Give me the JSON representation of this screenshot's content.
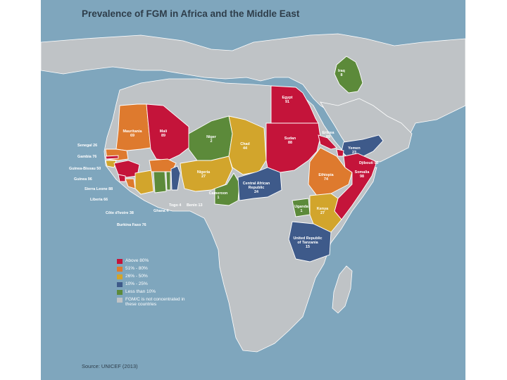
{
  "title": "Prevalence of FGM in Africa and the Middle East",
  "source": "Source: UNICEF (2013)",
  "colors": {
    "above80": "#c4143a",
    "51to80": "#de7a2e",
    "26to50": "#d2a52c",
    "10to25": "#3e5a8a",
    "below10": "#5c8a3a",
    "not_concentrated": "#bfc3c6",
    "water": "#7fa6bd"
  },
  "legend": [
    {
      "label": "Above 80%",
      "color": "#c4143a"
    },
    {
      "label": "51% - 80%",
      "color": "#de7a2e"
    },
    {
      "label": "26% - 50%",
      "color": "#d2a52c"
    },
    {
      "label": "10% - 25%",
      "color": "#3e5a8a"
    },
    {
      "label": "Less than 10%",
      "color": "#5c8a3a"
    },
    {
      "label": "FGM/C is not concentrated in these countries",
      "color": "#bfc3c6"
    }
  ],
  "countries": [
    {
      "id": "iraq",
      "name": "Iraq",
      "value": "8"
    },
    {
      "id": "egypt",
      "name": "Egypt",
      "value": "91"
    },
    {
      "id": "mauritania",
      "name": "Mauritania",
      "value": "69"
    },
    {
      "id": "mali",
      "name": "Mali",
      "value": "89"
    },
    {
      "id": "niger",
      "name": "Niger",
      "value": "2"
    },
    {
      "id": "chad",
      "name": "Chad",
      "value": "44"
    },
    {
      "id": "sudan",
      "name": "Sudan",
      "value": "88"
    },
    {
      "id": "eritrea",
      "name": "Eritrea",
      "value": "89"
    },
    {
      "id": "yemen",
      "name": "Yemen",
      "value": "23"
    },
    {
      "id": "djibouti",
      "name": "Djibouti",
      "value": "93"
    },
    {
      "id": "ethiopia",
      "name": "Ethiopia",
      "value": "74"
    },
    {
      "id": "somalia",
      "name": "Somalia",
      "value": "98"
    },
    {
      "id": "senegal",
      "name": "Senegal",
      "value": "26"
    },
    {
      "id": "gambia",
      "name": "Gambia",
      "value": "76"
    },
    {
      "id": "guinea_bissau",
      "name": "Guinea-Bissau",
      "value": "50"
    },
    {
      "id": "guinea",
      "name": "Guinea",
      "value": "96"
    },
    {
      "id": "sierra_leone",
      "name": "Sierra Leone",
      "value": "88"
    },
    {
      "id": "liberia",
      "name": "Liberia",
      "value": "66"
    },
    {
      "id": "cote_divoire",
      "name": "Côte d'Ivoire",
      "value": "38"
    },
    {
      "id": "burkina_faso",
      "name": "Burkina Faso",
      "value": "76"
    },
    {
      "id": "ghana",
      "name": "Ghana",
      "value": "4"
    },
    {
      "id": "togo",
      "name": "Togo",
      "value": "4"
    },
    {
      "id": "benin",
      "name": "Benin",
      "value": "13"
    },
    {
      "id": "nigeria",
      "name": "Nigeria",
      "value": "27"
    },
    {
      "id": "cameroon",
      "name": "Cameroon",
      "value": "1"
    },
    {
      "id": "car",
      "name": "Central African Republic",
      "value": "24"
    },
    {
      "id": "uganda",
      "name": "Uganda",
      "value": "1"
    },
    {
      "id": "kenya",
      "name": "Kenya",
      "value": "27"
    },
    {
      "id": "tanzania",
      "name": "United Republic of Tanzania",
      "value": "15"
    }
  ]
}
